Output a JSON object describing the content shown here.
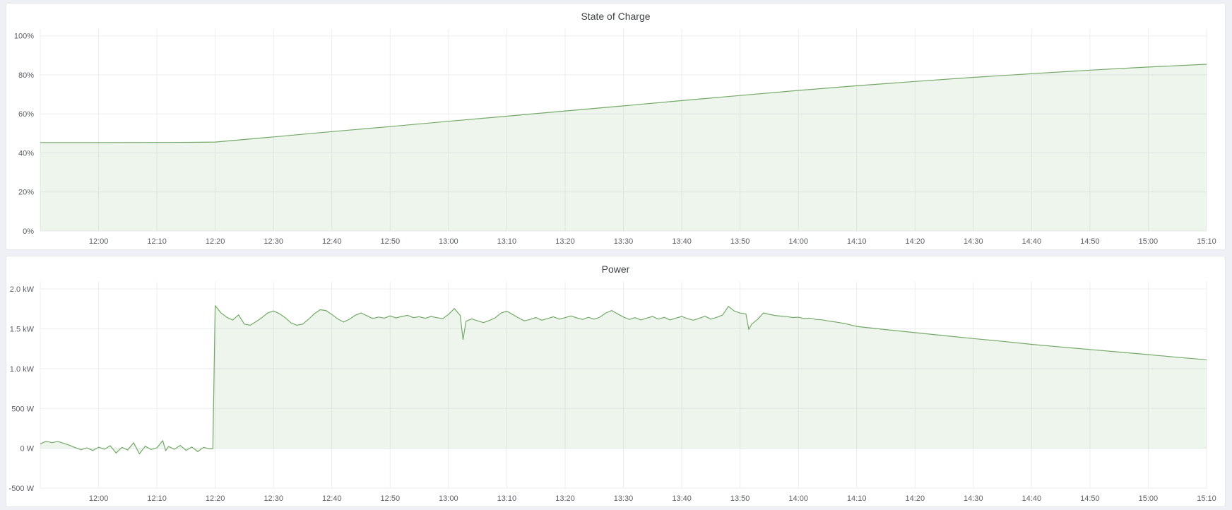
{
  "panels": {
    "soc_title": "State of Charge",
    "power_title": "Power"
  },
  "style": {
    "line_color": "#74a968",
    "fill_color": "rgba(116,169,104,0.12)",
    "grid_color": "#ebedef",
    "tick_color": "#5b5e64",
    "panel_bg": "#ffffff",
    "page_bg": "#eef0f5"
  },
  "chart_data": [
    {
      "type": "area",
      "title": "State of Charge",
      "xlabel": "",
      "ylabel": "",
      "legend": "none",
      "grid": true,
      "x_domain": [
        0,
        200
      ],
      "x_note": "minutes after 11:50",
      "x_ticks": [
        {
          "m": 10,
          "label": "12:00"
        },
        {
          "m": 20,
          "label": "12:10"
        },
        {
          "m": 30,
          "label": "12:20"
        },
        {
          "m": 40,
          "label": "12:30"
        },
        {
          "m": 50,
          "label": "12:40"
        },
        {
          "m": 60,
          "label": "12:50"
        },
        {
          "m": 70,
          "label": "13:00"
        },
        {
          "m": 80,
          "label": "13:10"
        },
        {
          "m": 90,
          "label": "13:20"
        },
        {
          "m": 100,
          "label": "13:30"
        },
        {
          "m": 110,
          "label": "13:40"
        },
        {
          "m": 120,
          "label": "13:50"
        },
        {
          "m": 130,
          "label": "14:00"
        },
        {
          "m": 140,
          "label": "14:10"
        },
        {
          "m": 150,
          "label": "14:20"
        },
        {
          "m": 160,
          "label": "14:30"
        },
        {
          "m": 170,
          "label": "14:40"
        },
        {
          "m": 180,
          "label": "14:50"
        },
        {
          "m": 190,
          "label": "15:00"
        },
        {
          "m": 200,
          "label": "15:10"
        }
      ],
      "ylim": [
        0,
        103.5
      ],
      "y_ticks": [
        {
          "v": 0,
          "label": "0%"
        },
        {
          "v": 20,
          "label": "20%"
        },
        {
          "v": 40,
          "label": "40%"
        },
        {
          "v": 60,
          "label": "60%"
        },
        {
          "v": 80,
          "label": "80%"
        },
        {
          "v": 100,
          "label": "100%"
        }
      ],
      "baseline": 0,
      "series": [
        {
          "name": "State of Charge",
          "unit": "%",
          "points": [
            [
              0,
              45.3
            ],
            [
              10,
              45.3
            ],
            [
              20,
              45.35
            ],
            [
              26,
              45.4
            ],
            [
              30,
              45.55
            ],
            [
              40,
              48.2
            ],
            [
              50,
              50.9
            ],
            [
              60,
              53.5
            ],
            [
              70,
              56.2
            ],
            [
              80,
              58.8
            ],
            [
              90,
              61.5
            ],
            [
              100,
              64.1
            ],
            [
              110,
              66.8
            ],
            [
              120,
              69.4
            ],
            [
              130,
              72.0
            ],
            [
              140,
              74.4
            ],
            [
              150,
              76.6
            ],
            [
              160,
              78.7
            ],
            [
              170,
              80.6
            ],
            [
              180,
              82.4
            ],
            [
              190,
              84.0
            ],
            [
              200,
              85.4
            ]
          ]
        }
      ]
    },
    {
      "type": "area",
      "title": "Power",
      "xlabel": "",
      "ylabel": "",
      "legend": "none",
      "grid": true,
      "x_domain": [
        0,
        200
      ],
      "x_note": "minutes after 11:50",
      "x_ticks": [
        {
          "m": 10,
          "label": "12:00"
        },
        {
          "m": 20,
          "label": "12:10"
        },
        {
          "m": 30,
          "label": "12:20"
        },
        {
          "m": 40,
          "label": "12:30"
        },
        {
          "m": 50,
          "label": "12:40"
        },
        {
          "m": 60,
          "label": "12:50"
        },
        {
          "m": 70,
          "label": "13:00"
        },
        {
          "m": 80,
          "label": "13:10"
        },
        {
          "m": 90,
          "label": "13:20"
        },
        {
          "m": 100,
          "label": "13:30"
        },
        {
          "m": 110,
          "label": "13:40"
        },
        {
          "m": 120,
          "label": "13:50"
        },
        {
          "m": 130,
          "label": "14:00"
        },
        {
          "m": 140,
          "label": "14:10"
        },
        {
          "m": 150,
          "label": "14:20"
        },
        {
          "m": 160,
          "label": "14:30"
        },
        {
          "m": 170,
          "label": "14:40"
        },
        {
          "m": 180,
          "label": "14:50"
        },
        {
          "m": 190,
          "label": "15:00"
        },
        {
          "m": 200,
          "label": "15:10"
        }
      ],
      "ylim": [
        -500,
        2090
      ],
      "y_ticks": [
        {
          "v": -500,
          "label": "-500 W"
        },
        {
          "v": 0,
          "label": "0 W"
        },
        {
          "v": 500,
          "label": "500 W"
        },
        {
          "v": 1000,
          "label": "1.0 kW"
        },
        {
          "v": 1500,
          "label": "1.5 kW"
        },
        {
          "v": 2000,
          "label": "2.0 kW"
        }
      ],
      "baseline": 0,
      "series": [
        {
          "name": "Power",
          "unit": "W",
          "points": [
            [
              0,
              55
            ],
            [
              1,
              88
            ],
            [
              2,
              70
            ],
            [
              3,
              86
            ],
            [
              4,
              62
            ],
            [
              5,
              38
            ],
            [
              6,
              8
            ],
            [
              7,
              -18
            ],
            [
              8,
              6
            ],
            [
              9,
              -28
            ],
            [
              10,
              14
            ],
            [
              11,
              -12
            ],
            [
              12,
              32
            ],
            [
              13,
              -60
            ],
            [
              14,
              12
            ],
            [
              15,
              -22
            ],
            [
              16,
              70
            ],
            [
              17,
              -70
            ],
            [
              18,
              26
            ],
            [
              19,
              -16
            ],
            [
              20,
              6
            ],
            [
              21,
              96
            ],
            [
              21.5,
              -30
            ],
            [
              22,
              22
            ],
            [
              23,
              -12
            ],
            [
              24,
              36
            ],
            [
              25,
              -26
            ],
            [
              26,
              16
            ],
            [
              27,
              -42
            ],
            [
              28,
              12
            ],
            [
              29,
              -8
            ],
            [
              29.6,
              -4
            ],
            [
              30,
              1790
            ],
            [
              31,
              1700
            ],
            [
              32,
              1645
            ],
            [
              33,
              1610
            ],
            [
              34,
              1675
            ],
            [
              35,
              1560
            ],
            [
              36,
              1545
            ],
            [
              37,
              1590
            ],
            [
              38,
              1640
            ],
            [
              39,
              1700
            ],
            [
              40,
              1725
            ],
            [
              41,
              1690
            ],
            [
              42,
              1640
            ],
            [
              43,
              1575
            ],
            [
              44,
              1545
            ],
            [
              45,
              1560
            ],
            [
              46,
              1620
            ],
            [
              47,
              1690
            ],
            [
              48,
              1740
            ],
            [
              49,
              1730
            ],
            [
              50,
              1680
            ],
            [
              51,
              1625
            ],
            [
              52,
              1585
            ],
            [
              53,
              1620
            ],
            [
              54,
              1670
            ],
            [
              55,
              1700
            ],
            [
              56,
              1665
            ],
            [
              57,
              1630
            ],
            [
              58,
              1648
            ],
            [
              59,
              1635
            ],
            [
              60,
              1662
            ],
            [
              61,
              1638
            ],
            [
              62,
              1655
            ],
            [
              63,
              1670
            ],
            [
              64,
              1640
            ],
            [
              65,
              1652
            ],
            [
              66,
              1632
            ],
            [
              67,
              1655
            ],
            [
              68,
              1640
            ],
            [
              69,
              1628
            ],
            [
              70,
              1680
            ],
            [
              71,
              1755
            ],
            [
              72,
              1670
            ],
            [
              72.5,
              1365
            ],
            [
              73,
              1595
            ],
            [
              74,
              1625
            ],
            [
              75,
              1600
            ],
            [
              76,
              1578
            ],
            [
              77,
              1605
            ],
            [
              78,
              1638
            ],
            [
              79,
              1698
            ],
            [
              80,
              1722
            ],
            [
              81,
              1680
            ],
            [
              82,
              1638
            ],
            [
              83,
              1600
            ],
            [
              84,
              1618
            ],
            [
              85,
              1642
            ],
            [
              86,
              1608
            ],
            [
              87,
              1630
            ],
            [
              88,
              1652
            ],
            [
              89,
              1622
            ],
            [
              90,
              1640
            ],
            [
              91,
              1662
            ],
            [
              92,
              1638
            ],
            [
              93,
              1618
            ],
            [
              94,
              1645
            ],
            [
              95,
              1622
            ],
            [
              96,
              1648
            ],
            [
              97,
              1700
            ],
            [
              98,
              1730
            ],
            [
              99,
              1688
            ],
            [
              100,
              1648
            ],
            [
              101,
              1618
            ],
            [
              102,
              1640
            ],
            [
              103,
              1612
            ],
            [
              104,
              1635
            ],
            [
              105,
              1655
            ],
            [
              106,
              1622
            ],
            [
              107,
              1645
            ],
            [
              108,
              1612
            ],
            [
              109,
              1635
            ],
            [
              110,
              1655
            ],
            [
              111,
              1628
            ],
            [
              112,
              1608
            ],
            [
              113,
              1632
            ],
            [
              114,
              1658
            ],
            [
              115,
              1622
            ],
            [
              116,
              1645
            ],
            [
              117,
              1672
            ],
            [
              118,
              1782
            ],
            [
              119,
              1725
            ],
            [
              120,
              1698
            ],
            [
              121,
              1688
            ],
            [
              121.5,
              1492
            ],
            [
              122,
              1560
            ],
            [
              123,
              1618
            ],
            [
              124,
              1700
            ],
            [
              125,
              1682
            ],
            [
              126,
              1668
            ],
            [
              127,
              1660
            ],
            [
              128,
              1654
            ],
            [
              129,
              1642
            ],
            [
              130,
              1646
            ],
            [
              131,
              1630
            ],
            [
              132,
              1634
            ],
            [
              133,
              1618
            ],
            [
              134,
              1614
            ],
            [
              135,
              1600
            ],
            [
              136,
              1590
            ],
            [
              137,
              1578
            ],
            [
              138,
              1566
            ],
            [
              139,
              1548
            ],
            [
              140,
              1530
            ],
            [
              145,
              1490
            ],
            [
              150,
              1452
            ],
            [
              155,
              1415
            ],
            [
              160,
              1378
            ],
            [
              165,
              1343
            ],
            [
              170,
              1305
            ],
            [
              175,
              1272
            ],
            [
              180,
              1240
            ],
            [
              185,
              1208
            ],
            [
              190,
              1176
            ],
            [
              195,
              1143
            ],
            [
              200,
              1112
            ]
          ]
        }
      ]
    }
  ]
}
